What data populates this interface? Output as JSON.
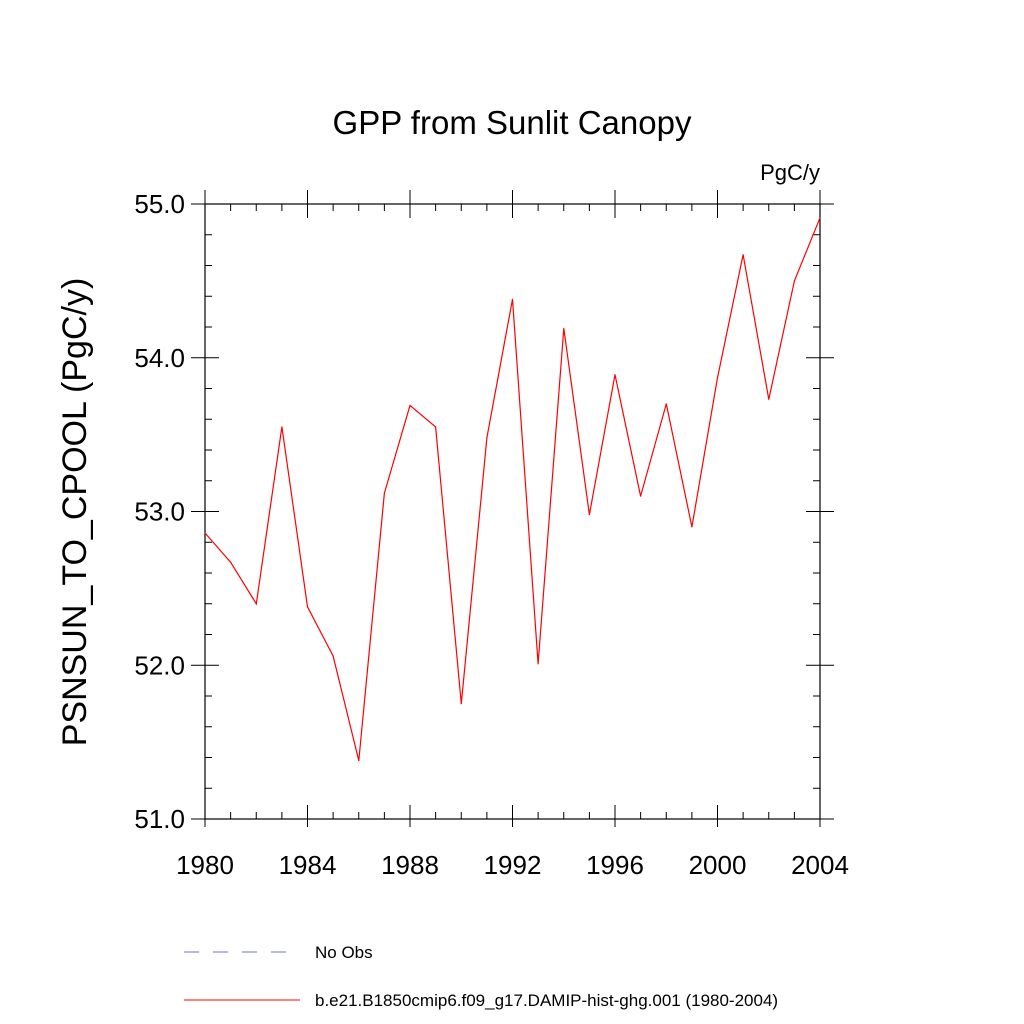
{
  "chart_data": {
    "type": "line",
    "title": "GPP from Sunlit Canopy",
    "units_label": "PgC/y",
    "ylabel": "PSNSUN_TO_CPOOL  (PgC/y)",
    "xlabel": "",
    "xlim": [
      1980,
      2004
    ],
    "ylim": [
      51.0,
      55.0
    ],
    "x_ticks": [
      1980,
      1984,
      1988,
      1992,
      1996,
      2000,
      2004
    ],
    "y_ticks": [
      51.0,
      52.0,
      53.0,
      54.0,
      55.0
    ],
    "y_tick_labels": [
      "51.0",
      "52.0",
      "53.0",
      "54.0",
      "55.0"
    ],
    "grid": false,
    "legend_position": "bottom",
    "series": [
      {
        "name": "b.e21.B1850cmip6.f09_g17.DAMIP-hist-ghg.001 (1980-2004)",
        "color": "#ff0000",
        "style": "solid",
        "x": [
          1980,
          1981,
          1982,
          1983,
          1984,
          1985,
          1986,
          1987,
          1988,
          1989,
          1990,
          1991,
          1992,
          1993,
          1994,
          1995,
          1996,
          1997,
          1998,
          1999,
          2000,
          2001,
          2002,
          2003,
          2004
        ],
        "values": [
          52.86,
          52.67,
          52.4,
          53.55,
          52.38,
          52.06,
          51.38,
          53.12,
          53.69,
          53.55,
          51.75,
          53.48,
          54.38,
          52.01,
          54.19,
          52.98,
          53.89,
          53.1,
          53.7,
          52.9,
          53.87,
          54.67,
          53.73,
          54.5,
          54.91
        ]
      }
    ],
    "legend": [
      {
        "label": "No Obs",
        "color": "#7070c8",
        "style": "dashed"
      },
      {
        "label": "b.e21.B1850cmip6.f09_g17.DAMIP-hist-ghg.001 (1980-2004)",
        "color": "#ff0000",
        "style": "solid"
      }
    ]
  }
}
